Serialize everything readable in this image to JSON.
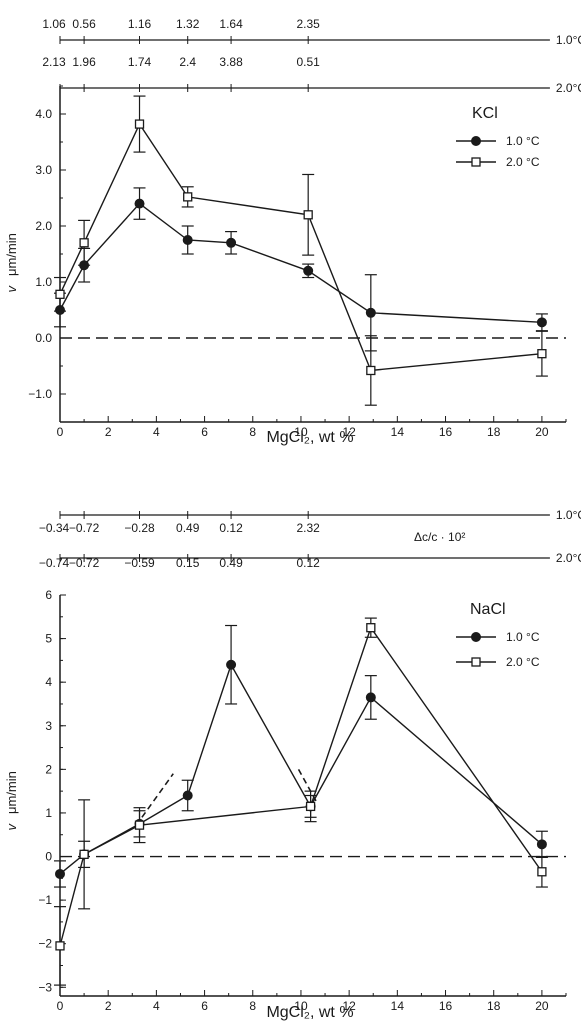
{
  "chart_data": [
    {
      "type": "line",
      "panel_label": "KCl",
      "xlabel": "MgCl₂, wt %",
      "ylabel_main": "v",
      "ylabel_unit": "μm/min",
      "xlim": [
        0,
        21
      ],
      "ylim": [
        -1.5,
        4.5
      ],
      "xticks": [
        0,
        2,
        4,
        6,
        8,
        10,
        12,
        14,
        16,
        18,
        20
      ],
      "yticks": [
        -1.0,
        0.0,
        1.0,
        2.0,
        3.0,
        4.0
      ],
      "ytick_labels": [
        "−1.0",
        "0.0",
        "1.0",
        "2.0",
        "3.0",
        "4.0"
      ],
      "zero_line": "dashed",
      "legend_position": "top-right",
      "series": [
        {
          "name": "1.0 °C",
          "marker": "filled-circle",
          "x": [
            0,
            1,
            3.3,
            5.3,
            7.1,
            10.3,
            12.9,
            20
          ],
          "y": [
            0.5,
            1.3,
            2.4,
            1.75,
            1.7,
            1.2,
            0.45,
            0.28
          ],
          "err": [
            0.3,
            0.3,
            0.28,
            0.25,
            0.2,
            0.12,
            0.68,
            0.15
          ]
        },
        {
          "name": "2.0 °C",
          "marker": "open-square",
          "x": [
            0,
            1,
            3.3,
            5.3,
            10.3,
            12.9,
            20
          ],
          "y": [
            0.78,
            1.7,
            3.82,
            2.52,
            2.2,
            -0.58,
            -0.28
          ],
          "err": [
            0.3,
            0.4,
            0.5,
            0.18,
            0.72,
            0.62,
            0.4
          ]
        }
      ],
      "top_scales": [
        {
          "name": "1.0°C",
          "values": [
            "1.06",
            "0.56",
            "1.16",
            "1.32",
            "1.64",
            "2.35"
          ],
          "x": [
            0,
            1,
            3.3,
            5.3,
            7.1,
            10.3
          ]
        },
        {
          "name": "2.0°C",
          "values": [
            "2.13",
            "1.96",
            "1.74",
            "2.4",
            "3.88",
            "0.51"
          ],
          "x": [
            0,
            1,
            3.3,
            5.3,
            7.1,
            10.3
          ]
        }
      ]
    },
    {
      "type": "line",
      "panel_label": "NaCl",
      "xlabel": "MgCl₂, wt %",
      "ylabel_main": "v",
      "ylabel_unit": "μm/min",
      "xlim": [
        0,
        21
      ],
      "ylim": [
        -3.2,
        6
      ],
      "xticks": [
        0,
        2,
        4,
        6,
        8,
        10,
        12,
        14,
        16,
        18,
        20
      ],
      "yticks": [
        -3,
        -2,
        -1,
        0,
        1,
        2,
        3,
        4,
        5,
        6
      ],
      "ytick_labels": [
        "−3",
        "−2",
        "−1",
        "0",
        "1",
        "2",
        "3",
        "4",
        "5",
        "6"
      ],
      "zero_line": "dashed",
      "legend_position": "top-right",
      "series": [
        {
          "name": "1.0 °C",
          "marker": "filled-circle",
          "x": [
            0,
            1,
            3.3,
            5.3,
            7.1,
            10.4,
            12.9,
            20
          ],
          "y": [
            -0.4,
            0.05,
            0.75,
            1.4,
            4.4,
            1.15,
            3.65,
            0.28
          ],
          "err": [
            0.3,
            0.3,
            0.3,
            0.35,
            0.9,
            0.25,
            0.5,
            0.3
          ]
        },
        {
          "name": "2.0 °C",
          "marker": "open-square",
          "x": [
            0,
            1,
            3.3,
            10.4,
            12.9,
            20
          ],
          "y": [
            -2.05,
            0.05,
            0.72,
            1.15,
            5.25,
            -0.35
          ],
          "err": [
            0.9,
            1.25,
            0.4,
            0.35,
            0.22,
            0.35
          ]
        }
      ],
      "dashed_segments": [
        {
          "from": [
            3.4,
            0.9
          ],
          "to": [
            4.7,
            1.9
          ]
        },
        {
          "from": [
            9.9,
            2.0
          ],
          "to": [
            10.7,
            1.2
          ]
        }
      ],
      "delta_label": "Δc/c · 10²",
      "top_scales": [
        {
          "name": "1.0°C",
          "values": [
            "−0.34",
            "−0.72",
            "−0.28",
            "0.49",
            "0.12",
            "2.32"
          ],
          "x": [
            0,
            1,
            3.3,
            5.3,
            7.1,
            10.3
          ]
        },
        {
          "name": "2.0°C",
          "values": [
            "−0.74",
            "−0.72",
            "−0.59",
            "0.15",
            "0.49",
            "0.12"
          ],
          "x": [
            0,
            1,
            3.3,
            5.3,
            7.1,
            10.3
          ]
        }
      ]
    }
  ]
}
